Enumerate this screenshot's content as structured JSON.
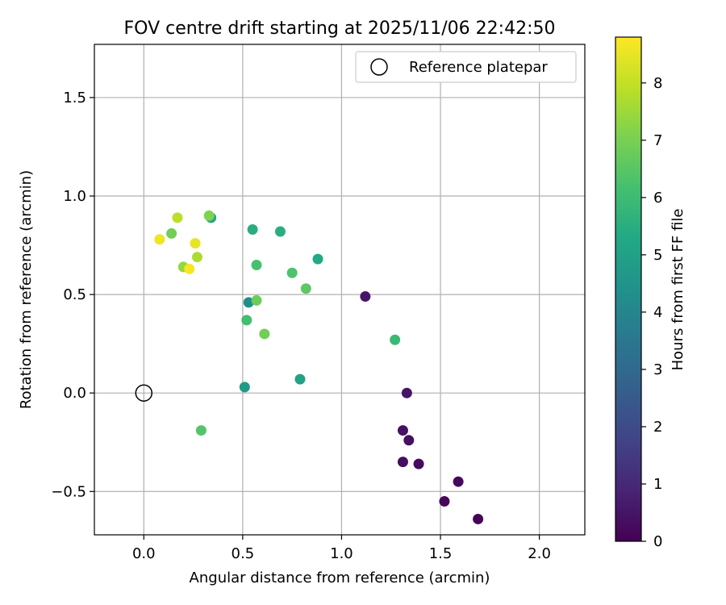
{
  "chart_data": {
    "type": "scatter",
    "title": "FOV centre drift starting at 2025/11/06 22:42:50",
    "xlabel": "Angular distance from reference (arcmin)",
    "ylabel": "Rotation from reference (arcmin)",
    "xlim": [
      -0.25,
      2.23
    ],
    "ylim": [
      -0.72,
      1.77
    ],
    "xticks": [
      0.0,
      0.5,
      1.0,
      1.5,
      2.0
    ],
    "xtick_labels": [
      "0.0",
      "0.5",
      "1.0",
      "1.5",
      "2.0"
    ],
    "yticks": [
      -0.5,
      0.0,
      0.5,
      1.0,
      1.5
    ],
    "ytick_labels": [
      "−0.5",
      "0.0",
      "0.5",
      "1.0",
      "1.5"
    ],
    "grid": true,
    "legend": {
      "position": "top-right",
      "label": "Reference platepar"
    },
    "reference_point": {
      "x": 0.0,
      "y": 0.0
    },
    "colorbar": {
      "label": "Hours from first FF file",
      "colormap": "viridis",
      "range": [
        0,
        8.8
      ],
      "ticks": [
        0,
        1,
        2,
        3,
        4,
        5,
        6,
        7,
        8
      ],
      "tick_labels": [
        "0",
        "1",
        "2",
        "3",
        "4",
        "5",
        "6",
        "7",
        "8"
      ]
    },
    "points": [
      {
        "x": 1.69,
        "y": -0.64,
        "hours": 0.1
      },
      {
        "x": 1.52,
        "y": -0.55,
        "hours": 0.15
      },
      {
        "x": 1.59,
        "y": -0.45,
        "hours": 0.2
      },
      {
        "x": 1.39,
        "y": -0.36,
        "hours": 0.25
      },
      {
        "x": 1.31,
        "y": -0.35,
        "hours": 0.3
      },
      {
        "x": 1.34,
        "y": -0.24,
        "hours": 0.35
      },
      {
        "x": 1.31,
        "y": -0.19,
        "hours": 0.4
      },
      {
        "x": 1.33,
        "y": 0.0,
        "hours": 0.45
      },
      {
        "x": 1.12,
        "y": 0.49,
        "hours": 0.5
      },
      {
        "x": 0.53,
        "y": 0.46,
        "hours": 4.3
      },
      {
        "x": 0.51,
        "y": 0.03,
        "hours": 4.8
      },
      {
        "x": 0.79,
        "y": 0.07,
        "hours": 5.0
      },
      {
        "x": 0.34,
        "y": 0.89,
        "hours": 5.2
      },
      {
        "x": 0.55,
        "y": 0.83,
        "hours": 5.5
      },
      {
        "x": 0.69,
        "y": 0.82,
        "hours": 5.5
      },
      {
        "x": 0.88,
        "y": 0.68,
        "hours": 5.3
      },
      {
        "x": 1.27,
        "y": 0.27,
        "hours": 5.9
      },
      {
        "x": 0.57,
        "y": 0.65,
        "hours": 6.2
      },
      {
        "x": 0.75,
        "y": 0.61,
        "hours": 6.3
      },
      {
        "x": 0.52,
        "y": 0.37,
        "hours": 6.1
      },
      {
        "x": 0.29,
        "y": -0.19,
        "hours": 6.4
      },
      {
        "x": 0.82,
        "y": 0.53,
        "hours": 6.6
      },
      {
        "x": 0.57,
        "y": 0.47,
        "hours": 6.8
      },
      {
        "x": 0.61,
        "y": 0.3,
        "hours": 6.9
      },
      {
        "x": 0.14,
        "y": 0.81,
        "hours": 6.9
      },
      {
        "x": 0.33,
        "y": 0.9,
        "hours": 7.1
      },
      {
        "x": 0.2,
        "y": 0.64,
        "hours": 7.4
      },
      {
        "x": 0.27,
        "y": 0.69,
        "hours": 7.7
      },
      {
        "x": 0.17,
        "y": 0.89,
        "hours": 7.9
      },
      {
        "x": 0.26,
        "y": 0.76,
        "hours": 8.5
      },
      {
        "x": 0.08,
        "y": 0.78,
        "hours": 8.6
      },
      {
        "x": 0.23,
        "y": 0.63,
        "hours": 8.7
      }
    ]
  }
}
